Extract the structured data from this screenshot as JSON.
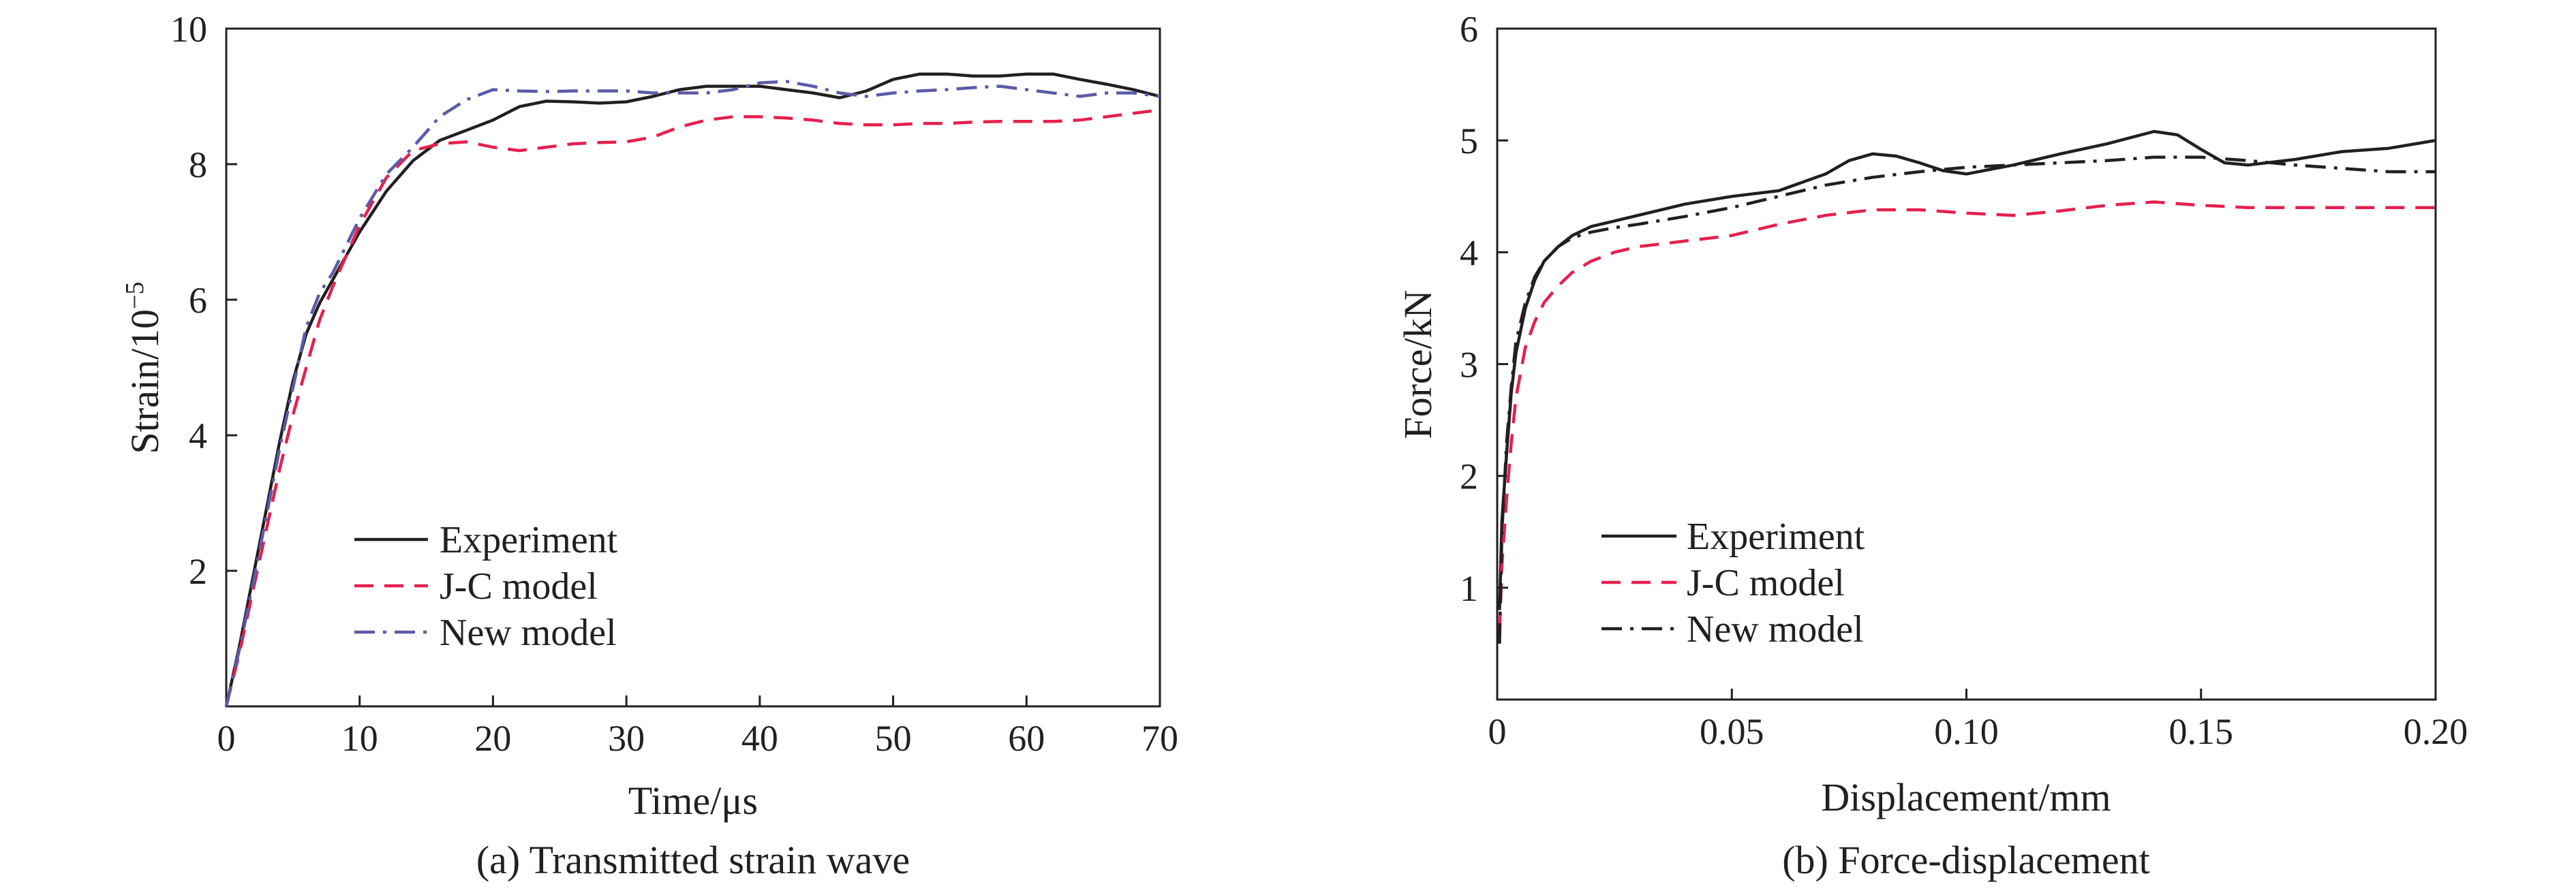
{
  "chart_data": [
    {
      "type": "line",
      "caption": "(a) Transmitted strain wave",
      "xlabel": "Time/μs",
      "ylabel": "Strain/10",
      "ylabel_exponent": "−5",
      "xlim": [
        0,
        70
      ],
      "ylim": [
        0,
        10
      ],
      "xticks": [
        0,
        10,
        20,
        30,
        40,
        50,
        60,
        70
      ],
      "xtick_labels": [
        "0",
        "10",
        "20",
        "30",
        "40",
        "50",
        "60",
        "70"
      ],
      "yticks": [
        2,
        4,
        6,
        8,
        10
      ],
      "ytick_labels": [
        "2",
        "4",
        "6",
        "8",
        "10"
      ],
      "grid": false,
      "legend_position": "lower-left",
      "series": [
        {
          "name": "Experiment",
          "color": "#231f20",
          "dash": "solid",
          "x": [
            0,
            1,
            2,
            3,
            4,
            5,
            6,
            7,
            8,
            10,
            12,
            14,
            16,
            18,
            20,
            22,
            24,
            26,
            28,
            30,
            32,
            34,
            36,
            38,
            40,
            42,
            44,
            46,
            48,
            50,
            52,
            54,
            56,
            58,
            60,
            62,
            64,
            66,
            68,
            70
          ],
          "y": [
            0,
            0.9,
            1.9,
            2.9,
            3.9,
            4.8,
            5.5,
            5.95,
            6.3,
            7.0,
            7.6,
            8.05,
            8.35,
            8.5,
            8.65,
            8.85,
            8.93,
            8.92,
            8.9,
            8.92,
            9.0,
            9.1,
            9.15,
            9.15,
            9.15,
            9.1,
            9.05,
            8.98,
            9.08,
            9.25,
            9.33,
            9.33,
            9.3,
            9.3,
            9.33,
            9.33,
            9.25,
            9.18,
            9.1,
            9.0
          ]
        },
        {
          "name": "J-C model",
          "color": "#e5204d",
          "dash": "dashed",
          "x": [
            0,
            1,
            2,
            3,
            4,
            5,
            6,
            7,
            8,
            10,
            12,
            14,
            16,
            18,
            20,
            22,
            24,
            26,
            28,
            30,
            32,
            34,
            36,
            38,
            40,
            42,
            44,
            46,
            48,
            50,
            52,
            54,
            56,
            58,
            60,
            62,
            64,
            66,
            68,
            70
          ],
          "y": [
            0,
            0.8,
            1.7,
            2.6,
            3.5,
            4.3,
            5.0,
            5.7,
            6.2,
            7.1,
            7.8,
            8.2,
            8.3,
            8.33,
            8.25,
            8.2,
            8.25,
            8.3,
            8.32,
            8.33,
            8.4,
            8.55,
            8.65,
            8.7,
            8.7,
            8.68,
            8.65,
            8.6,
            8.58,
            8.58,
            8.6,
            8.6,
            8.62,
            8.63,
            8.63,
            8.63,
            8.65,
            8.7,
            8.75,
            8.8
          ]
        },
        {
          "name": "New model",
          "color": "#5b5ba8",
          "dash": "dashdot",
          "x": [
            0,
            1,
            2,
            3,
            4,
            5,
            6,
            7,
            8,
            10,
            12,
            14,
            16,
            18,
            20,
            22,
            24,
            26,
            28,
            30,
            32,
            34,
            36,
            38,
            40,
            42,
            44,
            46,
            48,
            50,
            52,
            54,
            56,
            58,
            60,
            62,
            64,
            66,
            68,
            70
          ],
          "y": [
            0,
            0.85,
            1.8,
            2.8,
            3.8,
            4.7,
            5.6,
            6.1,
            6.4,
            7.2,
            7.85,
            8.25,
            8.7,
            8.95,
            9.1,
            9.08,
            9.07,
            9.08,
            9.08,
            9.08,
            9.05,
            9.05,
            9.05,
            9.1,
            9.2,
            9.22,
            9.15,
            9.05,
            9.0,
            9.05,
            9.08,
            9.1,
            9.13,
            9.15,
            9.1,
            9.05,
            9.0,
            9.05,
            9.05,
            9.0
          ]
        }
      ]
    },
    {
      "type": "line",
      "caption": "(b) Force-displacement",
      "xlabel": "Displacement/mm",
      "ylabel": "Force/kN",
      "xlim": [
        0,
        0.2
      ],
      "ylim": [
        0,
        6
      ],
      "xticks": [
        0,
        0.05,
        0.1,
        0.15,
        0.2
      ],
      "xtick_labels": [
        "0",
        "0.05",
        "0.10",
        "0.15",
        "0.20"
      ],
      "yticks": [
        1,
        2,
        3,
        4,
        5,
        6
      ],
      "ytick_labels": [
        "1",
        "2",
        "3",
        "4",
        "5",
        "6"
      ],
      "grid": false,
      "legend_position": "lower-left",
      "series": [
        {
          "name": "Experiment",
          "color": "#231f20",
          "dash": "solid",
          "x": [
            0.0005,
            0.001,
            0.002,
            0.003,
            0.004,
            0.006,
            0.008,
            0.01,
            0.013,
            0.016,
            0.02,
            0.025,
            0.03,
            0.04,
            0.05,
            0.06,
            0.07,
            0.075,
            0.08,
            0.085,
            0.09,
            0.095,
            0.1,
            0.11,
            0.12,
            0.13,
            0.14,
            0.145,
            0.15,
            0.155,
            0.16,
            0.17,
            0.18,
            0.19,
            0.2
          ],
          "y": [
            0.8,
            1.6,
            2.2,
            2.75,
            3.1,
            3.5,
            3.75,
            3.92,
            4.05,
            4.15,
            4.23,
            4.28,
            4.33,
            4.43,
            4.5,
            4.55,
            4.7,
            4.82,
            4.88,
            4.86,
            4.8,
            4.73,
            4.7,
            4.78,
            4.88,
            4.97,
            5.08,
            5.05,
            4.92,
            4.8,
            4.78,
            4.83,
            4.9,
            4.93,
            5.0
          ]
        },
        {
          "name": "J-C model",
          "color": "#e5204d",
          "dash": "dashed",
          "x": [
            0.0005,
            0.001,
            0.002,
            0.003,
            0.004,
            0.006,
            0.008,
            0.01,
            0.013,
            0.016,
            0.02,
            0.025,
            0.03,
            0.04,
            0.05,
            0.06,
            0.07,
            0.08,
            0.09,
            0.1,
            0.11,
            0.12,
            0.13,
            0.14,
            0.15,
            0.16,
            0.17,
            0.18,
            0.19,
            0.2
          ],
          "y": [
            0.6,
            1.2,
            1.8,
            2.3,
            2.7,
            3.15,
            3.38,
            3.55,
            3.7,
            3.82,
            3.92,
            4.0,
            4.05,
            4.1,
            4.15,
            4.25,
            4.33,
            4.38,
            4.38,
            4.35,
            4.33,
            4.37,
            4.42,
            4.45,
            4.42,
            4.4,
            4.4,
            4.4,
            4.4,
            4.4
          ]
        },
        {
          "name": "New model",
          "color": "#231f20",
          "dash": "dashdot",
          "x": [
            0.0005,
            0.001,
            0.002,
            0.003,
            0.004,
            0.006,
            0.008,
            0.01,
            0.013,
            0.016,
            0.02,
            0.025,
            0.03,
            0.04,
            0.05,
            0.06,
            0.07,
            0.08,
            0.09,
            0.1,
            0.11,
            0.12,
            0.13,
            0.14,
            0.15,
            0.16,
            0.17,
            0.18,
            0.19,
            0.2
          ],
          "y": [
            0.5,
            1.5,
            2.3,
            2.8,
            3.2,
            3.55,
            3.78,
            3.92,
            4.05,
            4.13,
            4.18,
            4.22,
            4.25,
            4.32,
            4.4,
            4.5,
            4.6,
            4.67,
            4.72,
            4.76,
            4.78,
            4.8,
            4.82,
            4.85,
            4.85,
            4.82,
            4.78,
            4.75,
            4.72,
            4.72
          ]
        }
      ]
    }
  ]
}
